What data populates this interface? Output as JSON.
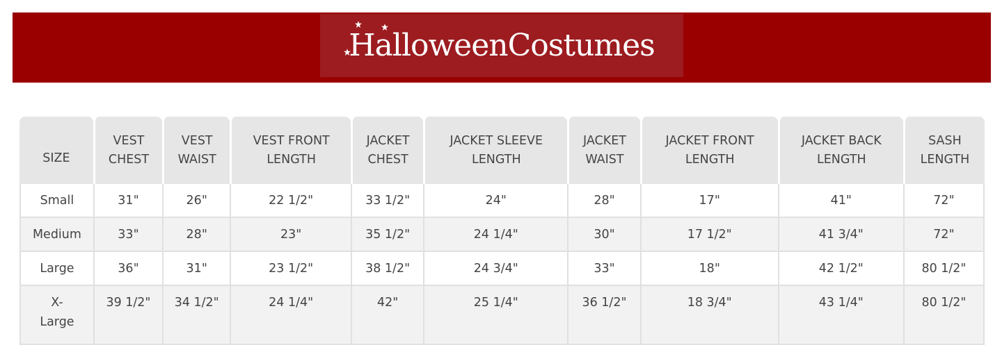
{
  "brand": {
    "logo_text": "HalloweenCostumes",
    "banner_color": "#9a0000",
    "logo_box_color": "#9c1c20"
  },
  "table": {
    "headers": [
      [
        "SIZE"
      ],
      [
        "VEST",
        "CHEST"
      ],
      [
        "VEST",
        "WAIST"
      ],
      [
        "VEST FRONT",
        "LENGTH"
      ],
      [
        "JACKET",
        "CHEST"
      ],
      [
        "JACKET SLEEVE",
        "LENGTH"
      ],
      [
        "JACKET",
        "WAIST"
      ],
      [
        "JACKET FRONT",
        "LENGTH"
      ],
      [
        "JACKET BACK",
        "LENGTH"
      ],
      [
        "SASH",
        "LENGTH"
      ]
    ],
    "rows": [
      [
        "Small",
        "31\"",
        "26\"",
        "22 1/2\"",
        "33 1/2\"",
        "24\"",
        "28\"",
        "17\"",
        "41\"",
        "72\""
      ],
      [
        "Medium",
        "33\"",
        "28\"",
        "23\"",
        "35 1/2\"",
        "24 1/4\"",
        "30\"",
        "17 1/2\"",
        "41 3/4\"",
        "72\""
      ],
      [
        "Large",
        "36\"",
        "31\"",
        "23 1/2\"",
        "38 1/2\"",
        "24 3/4\"",
        "33\"",
        "18\"",
        "42 1/2\"",
        "80 1/2\""
      ],
      [
        "X-\nLarge",
        "39 1/2\"",
        "34 1/2\"",
        "24 1/4\"",
        "42\"",
        "25 1/4\"",
        "36 1/2\"",
        "18 3/4\"",
        "43 1/4\"",
        "80 1/2\""
      ]
    ]
  }
}
